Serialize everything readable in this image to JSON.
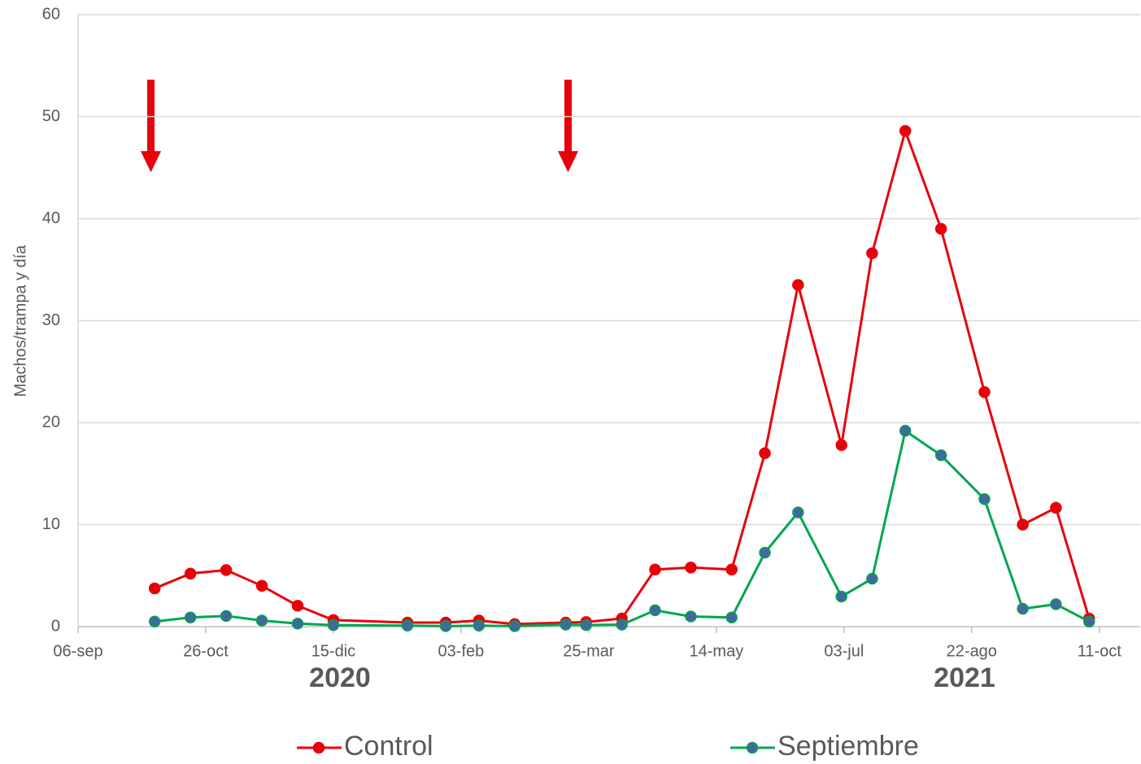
{
  "chart_data": {
    "type": "line",
    "y_label": "Machos/trampa y día",
    "year_labels": [
      "2020",
      "2021"
    ],
    "x": [
      "2020-10-06",
      "2020-10-20",
      "2020-11-03",
      "2020-11-17",
      "2020-12-01",
      "2020-12-15",
      "2021-01-13",
      "2021-01-28",
      "2021-02-10",
      "2021-02-24",
      "2021-03-16",
      "2021-03-24",
      "2021-04-07",
      "2021-04-20",
      "2021-05-04",
      "2021-05-20",
      "2021-06-02",
      "2021-06-15",
      "2021-07-02",
      "2021-07-14",
      "2021-07-27",
      "2021-08-10",
      "2021-08-27",
      "2021-09-11",
      "2021-09-24",
      "2021-10-07"
    ],
    "series": [
      {
        "name": "Control",
        "color": "#e8000b",
        "marker_color": "#e8000b",
        "values": [
          3.75,
          5.2,
          5.55,
          4.0,
          2.05,
          0.65,
          0.4,
          0.4,
          0.6,
          0.25,
          0.4,
          0.45,
          0.8,
          5.6,
          5.8,
          5.6,
          17.0,
          33.5,
          17.8,
          36.6,
          48.6,
          39.0,
          23.0,
          10.0,
          11.65,
          0.8
        ]
      },
      {
        "name": "Septiembre",
        "color": "#00a651",
        "marker_color": "#40699e",
        "values": [
          0.5,
          0.9,
          1.05,
          0.6,
          0.3,
          0.15,
          0.1,
          0.05,
          0.1,
          0.05,
          0.2,
          0.15,
          0.2,
          1.6,
          1.0,
          0.9,
          7.25,
          11.2,
          2.95,
          4.7,
          19.2,
          16.8,
          12.5,
          1.75,
          2.2,
          0.5
        ]
      }
    ],
    "xlim": [
      "2020-09-06",
      "2021-10-27"
    ],
    "xticks": [
      {
        "value": "2020-09-06",
        "label": "06-sep"
      },
      {
        "value": "2020-10-26",
        "label": "26-oct"
      },
      {
        "value": "2020-12-15",
        "label": "15-dic"
      },
      {
        "value": "2021-02-03",
        "label": "03-feb"
      },
      {
        "value": "2021-03-25",
        "label": "25-mar"
      },
      {
        "value": "2021-05-14",
        "label": "14-may"
      },
      {
        "value": "2021-07-03",
        "label": "03-jul"
      },
      {
        "value": "2021-08-22",
        "label": "22-ago"
      },
      {
        "value": "2021-10-11",
        "label": "11-oct"
      }
    ],
    "ylim": [
      0,
      60
    ],
    "yticks": [
      0,
      10,
      20,
      30,
      40,
      50,
      60
    ],
    "grid": true,
    "legend": "bottom"
  }
}
